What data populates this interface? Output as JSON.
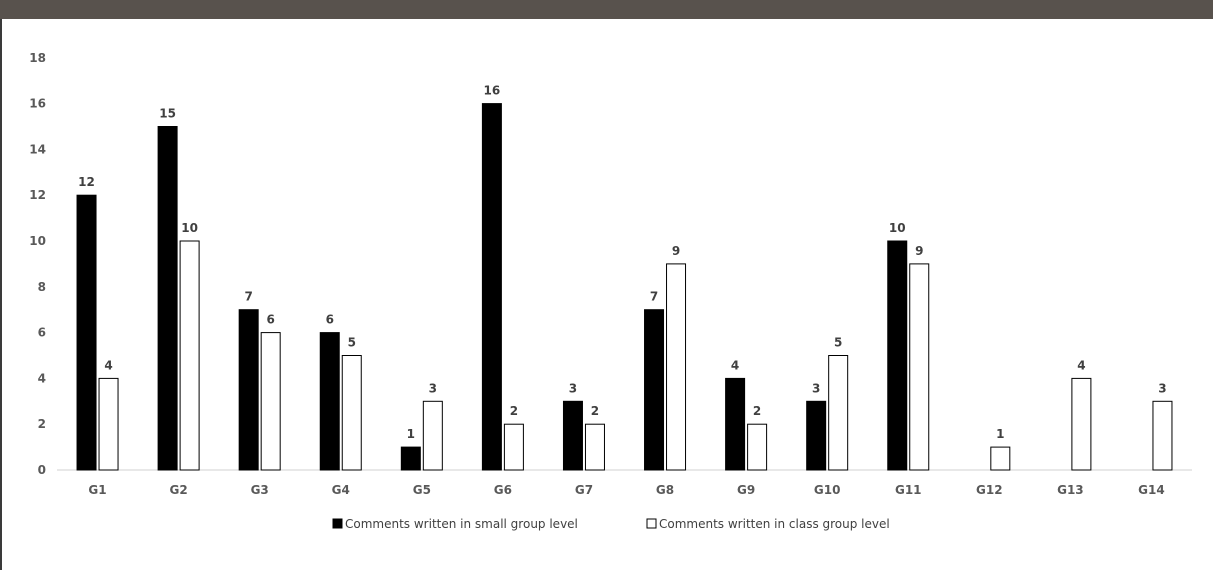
{
  "colors": {
    "header_band": "#58524d",
    "series_small": "#000000",
    "series_class": "#ffffff",
    "bar_stroke": "#000000",
    "axis": "#d0d0d0"
  },
  "chart_data": {
    "type": "bar",
    "title": "",
    "xlabel": "",
    "ylabel": "",
    "ylim": [
      0,
      18
    ],
    "yticks": [
      0,
      2,
      4,
      6,
      8,
      10,
      12,
      14,
      16,
      18
    ],
    "grid": false,
    "legend_position": "bottom",
    "categories": [
      "G1",
      "G2",
      "G3",
      "G4",
      "G5",
      "G6",
      "G7",
      "G8",
      "G9",
      "G10",
      "G11",
      "G12",
      "G13",
      "G14"
    ],
    "series": [
      {
        "name": "Comments written in small group level",
        "values": [
          12,
          15,
          7,
          6,
          1,
          16,
          3,
          7,
          4,
          3,
          10,
          null,
          null,
          null
        ]
      },
      {
        "name": "Comments written in class group level",
        "values": [
          4,
          10,
          6,
          5,
          3,
          2,
          2,
          9,
          2,
          5,
          9,
          1,
          4,
          3
        ]
      }
    ]
  }
}
